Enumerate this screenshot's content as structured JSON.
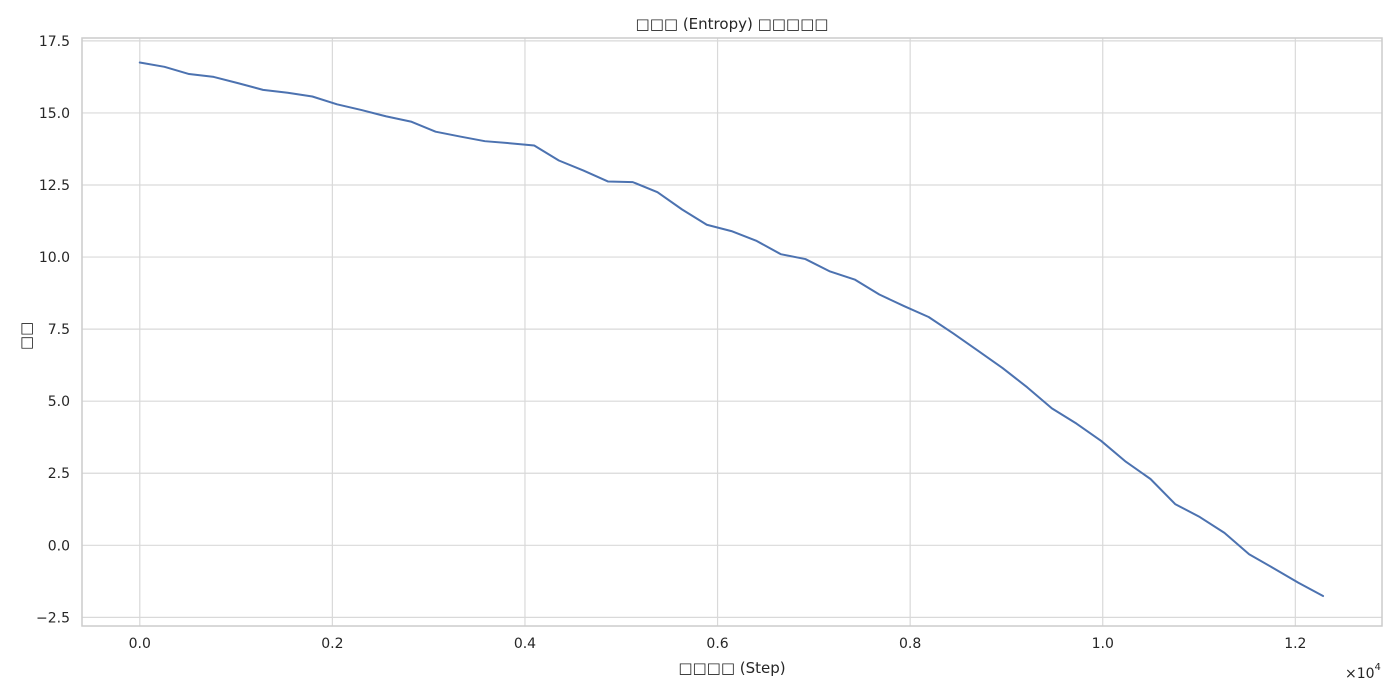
{
  "chart_data": {
    "type": "line",
    "title": "□□□ (Entropy) □□□□□",
    "xlabel": "□□□□ (Step)",
    "ylabel": "□□",
    "x_multiplier_label": "×10",
    "x_multiplier_exponent": "4",
    "xlim": [
      -0.06,
      1.29
    ],
    "ylim": [
      -2.8,
      17.6
    ],
    "x_ticks": [
      {
        "value": 0.0,
        "label": "0.0"
      },
      {
        "value": 0.2,
        "label": "0.2"
      },
      {
        "value": 0.4,
        "label": "0.4"
      },
      {
        "value": 0.6,
        "label": "0.6"
      },
      {
        "value": 0.8,
        "label": "0.8"
      },
      {
        "value": 1.0,
        "label": "1.0"
      },
      {
        "value": 1.2,
        "label": "1.2"
      }
    ],
    "y_ticks": [
      {
        "value": -2.5,
        "label": "−2.5"
      },
      {
        "value": 0.0,
        "label": "0.0"
      },
      {
        "value": 2.5,
        "label": "2.5"
      },
      {
        "value": 5.0,
        "label": "5.0"
      },
      {
        "value": 7.5,
        "label": "7.5"
      },
      {
        "value": 10.0,
        "label": "10.0"
      },
      {
        "value": 12.5,
        "label": "12.5"
      },
      {
        "value": 15.0,
        "label": "15.0"
      },
      {
        "value": 17.5,
        "label": "17.5"
      }
    ],
    "grid": true,
    "line_color": "#4c72b0",
    "series": [
      {
        "x": [
          0.0,
          0.0256,
          0.0512,
          0.0768,
          0.1024,
          0.128,
          0.1536,
          0.1792,
          0.2048,
          0.2304,
          0.256,
          0.2816,
          0.3072,
          0.3328,
          0.3584,
          0.384,
          0.4096,
          0.4352,
          0.4608,
          0.4864,
          0.512,
          0.5376,
          0.5632,
          0.5888,
          0.6144,
          0.64,
          0.6656,
          0.6912,
          0.7168,
          0.7424,
          0.768,
          0.7936,
          0.8192,
          0.8448,
          0.8704,
          0.896,
          0.9216,
          0.9472,
          0.9728,
          0.9984,
          1.024,
          1.0496,
          1.0752,
          1.1008,
          1.1264,
          1.152,
          1.1776,
          1.2032,
          1.2288
        ],
        "values": [
          16.75,
          16.6,
          16.35,
          16.25,
          16.03,
          15.8,
          15.7,
          15.57,
          15.3,
          15.1,
          14.88,
          14.7,
          14.35,
          14.18,
          14.02,
          13.95,
          13.87,
          13.35,
          13.0,
          12.62,
          12.6,
          12.25,
          11.65,
          11.12,
          10.9,
          10.57,
          10.1,
          9.93,
          9.5,
          9.22,
          8.7,
          8.3,
          7.92,
          7.35,
          6.75,
          6.15,
          5.48,
          4.75,
          4.22,
          3.62,
          2.9,
          2.3,
          1.43,
          0.98,
          0.43,
          -0.31,
          -0.8,
          -1.3,
          -1.76
        ]
      }
    ]
  }
}
